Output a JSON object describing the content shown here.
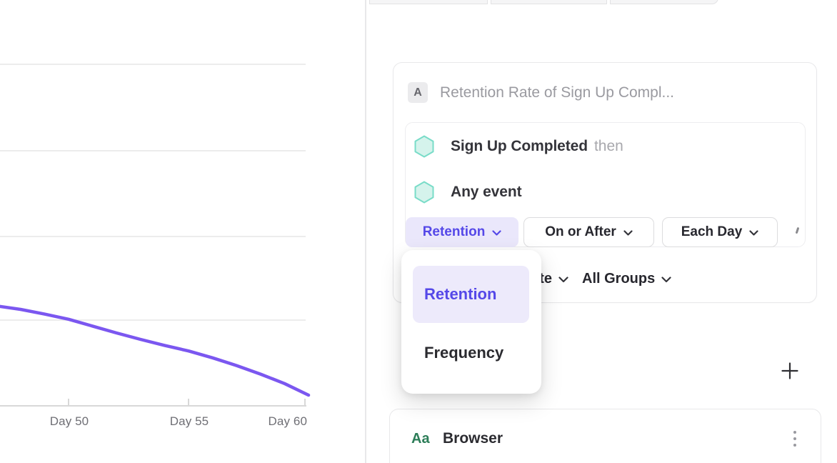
{
  "chart_data": {
    "type": "line",
    "title": "",
    "x": [
      47,
      48,
      49,
      50,
      51,
      52,
      53,
      54,
      55,
      56,
      57,
      58,
      59,
      60
    ],
    "series": [
      {
        "name": "Retention",
        "color": "#7B57F0",
        "values": [
          23.3,
          22.5,
          21.4,
          20.2,
          18.6,
          17.0,
          15.5,
          14.1,
          12.8,
          11.2,
          9.4,
          7.4,
          5.2,
          2.5
        ]
      }
    ],
    "x_tick_labels": [
      "Day 50",
      "Day 55",
      "Day 60"
    ],
    "x_tick_days": [
      50,
      55,
      60
    ],
    "xlabel": "",
    "ylabel": "",
    "ylim": [
      0,
      95
    ],
    "y_gridline_values": [
      20,
      40,
      60,
      80
    ],
    "y_axis_labels_visible": false,
    "grid": true,
    "legend": false
  },
  "query_card": {
    "series_badge": "A",
    "name_placeholder": "Retention Rate of Sign Up Compl...",
    "steps": [
      {
        "event": "Sign Up Completed",
        "connector": "then"
      },
      {
        "event": "Any event",
        "connector": ""
      }
    ],
    "controls": [
      {
        "label": "Retention",
        "style": "accent"
      },
      {
        "label": "On or After",
        "style": "default"
      },
      {
        "label": "Each Day",
        "style": "default"
      }
    ],
    "measure_label": "Retention Rate",
    "groups_label": "All Groups"
  },
  "metric_dropdown": {
    "items": [
      {
        "label": "Retention",
        "selected": true
      },
      {
        "label": "Frequency",
        "selected": false
      }
    ]
  },
  "add_button_label": "+",
  "breakdown_card": {
    "type_badge": "Aa",
    "label": "Browser"
  },
  "colors": {
    "accent": "#5548E8",
    "accent_bg": "#EAE7FB",
    "line": "#7B57F0",
    "event_icon_fill": "#D5F3EC",
    "event_icon_stroke": "#79DCC8",
    "string_type_green": "#2C7D58"
  }
}
